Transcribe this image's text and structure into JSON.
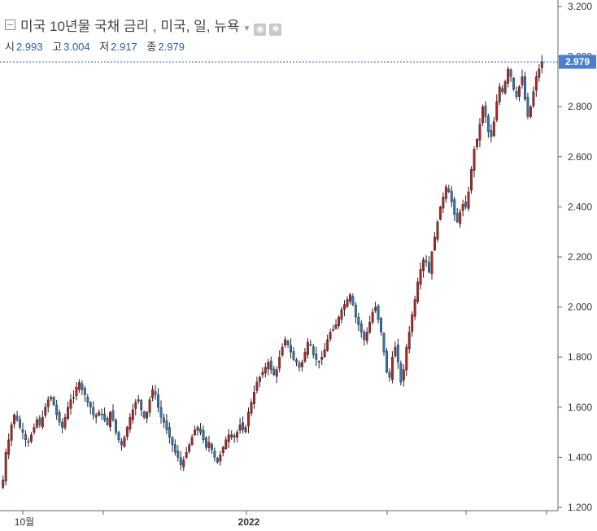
{
  "header": {
    "title": "미국 10년물 국채 금리 , 미국, 일, 뉴욕",
    "settings_icon": "eye-icon",
    "gear_icon": "gear-icon"
  },
  "ohlc": {
    "open_label": "시",
    "open": "2.993",
    "high_label": "고",
    "high": "3.004",
    "low_label": "저",
    "low": "2.917",
    "close_label": "종",
    "close": "2.979"
  },
  "colors": {
    "up": "#b22222",
    "down": "#2f74b5",
    "last_price_tag": "#4a7fd0",
    "axis": "#666666"
  },
  "chart_data": {
    "type": "candlestick",
    "y_axis_ticks": [
      "3.200",
      "3.000",
      "2.800",
      "2.600",
      "2.400",
      "2.200",
      "2.000",
      "1.800",
      "1.600",
      "1.400",
      "1.200"
    ],
    "ylim": [
      1.2,
      3.2
    ],
    "x_axis_labels": [
      "10월",
      "2022"
    ],
    "last_price": 2.979,
    "last_price_label": "2.979",
    "closes": [
      1.31,
      1.42,
      1.47,
      1.53,
      1.57,
      1.55,
      1.52,
      1.5,
      1.47,
      1.46,
      1.49,
      1.52,
      1.55,
      1.53,
      1.56,
      1.6,
      1.63,
      1.64,
      1.61,
      1.57,
      1.54,
      1.52,
      1.56,
      1.6,
      1.63,
      1.64,
      1.68,
      1.7,
      1.67,
      1.65,
      1.62,
      1.6,
      1.57,
      1.56,
      1.58,
      1.57,
      1.55,
      1.53,
      1.58,
      1.55,
      1.5,
      1.47,
      1.45,
      1.48,
      1.52,
      1.56,
      1.59,
      1.62,
      1.63,
      1.59,
      1.56,
      1.58,
      1.63,
      1.67,
      1.65,
      1.6,
      1.56,
      1.54,
      1.51,
      1.48,
      1.45,
      1.42,
      1.4,
      1.37,
      1.39,
      1.42,
      1.45,
      1.48,
      1.51,
      1.52,
      1.5,
      1.47,
      1.44,
      1.46,
      1.43,
      1.4,
      1.38,
      1.41,
      1.44,
      1.47,
      1.49,
      1.49,
      1.48,
      1.5,
      1.53,
      1.51,
      1.52,
      1.58,
      1.62,
      1.66,
      1.7,
      1.72,
      1.74,
      1.76,
      1.78,
      1.75,
      1.73,
      1.75,
      1.8,
      1.84,
      1.87,
      1.85,
      1.82,
      1.79,
      1.78,
      1.76,
      1.78,
      1.82,
      1.86,
      1.85,
      1.81,
      1.79,
      1.78,
      1.8,
      1.83,
      1.87,
      1.9,
      1.91,
      1.93,
      1.96,
      1.99,
      2.01,
      2.03,
      2.05,
      2.01,
      1.96,
      1.93,
      1.9,
      1.87,
      1.9,
      1.94,
      1.98,
      2.0,
      1.95,
      1.9,
      1.82,
      1.74,
      1.72,
      1.8,
      1.84,
      1.78,
      1.7,
      1.75,
      1.84,
      1.9,
      1.97,
      2.03,
      2.1,
      2.15,
      2.19,
      2.18,
      2.14,
      2.22,
      2.28,
      2.34,
      2.4,
      2.44,
      2.48,
      2.46,
      2.42,
      2.37,
      2.34,
      2.38,
      2.41,
      2.4,
      2.46,
      2.55,
      2.63,
      2.67,
      2.73,
      2.8,
      2.76,
      2.7,
      2.68,
      2.74,
      2.82,
      2.88,
      2.86,
      2.9,
      2.95,
      2.92,
      2.87,
      2.84,
      2.88,
      2.92,
      2.83,
      2.76,
      2.8,
      2.86,
      2.92,
      2.95,
      2.979
    ]
  }
}
